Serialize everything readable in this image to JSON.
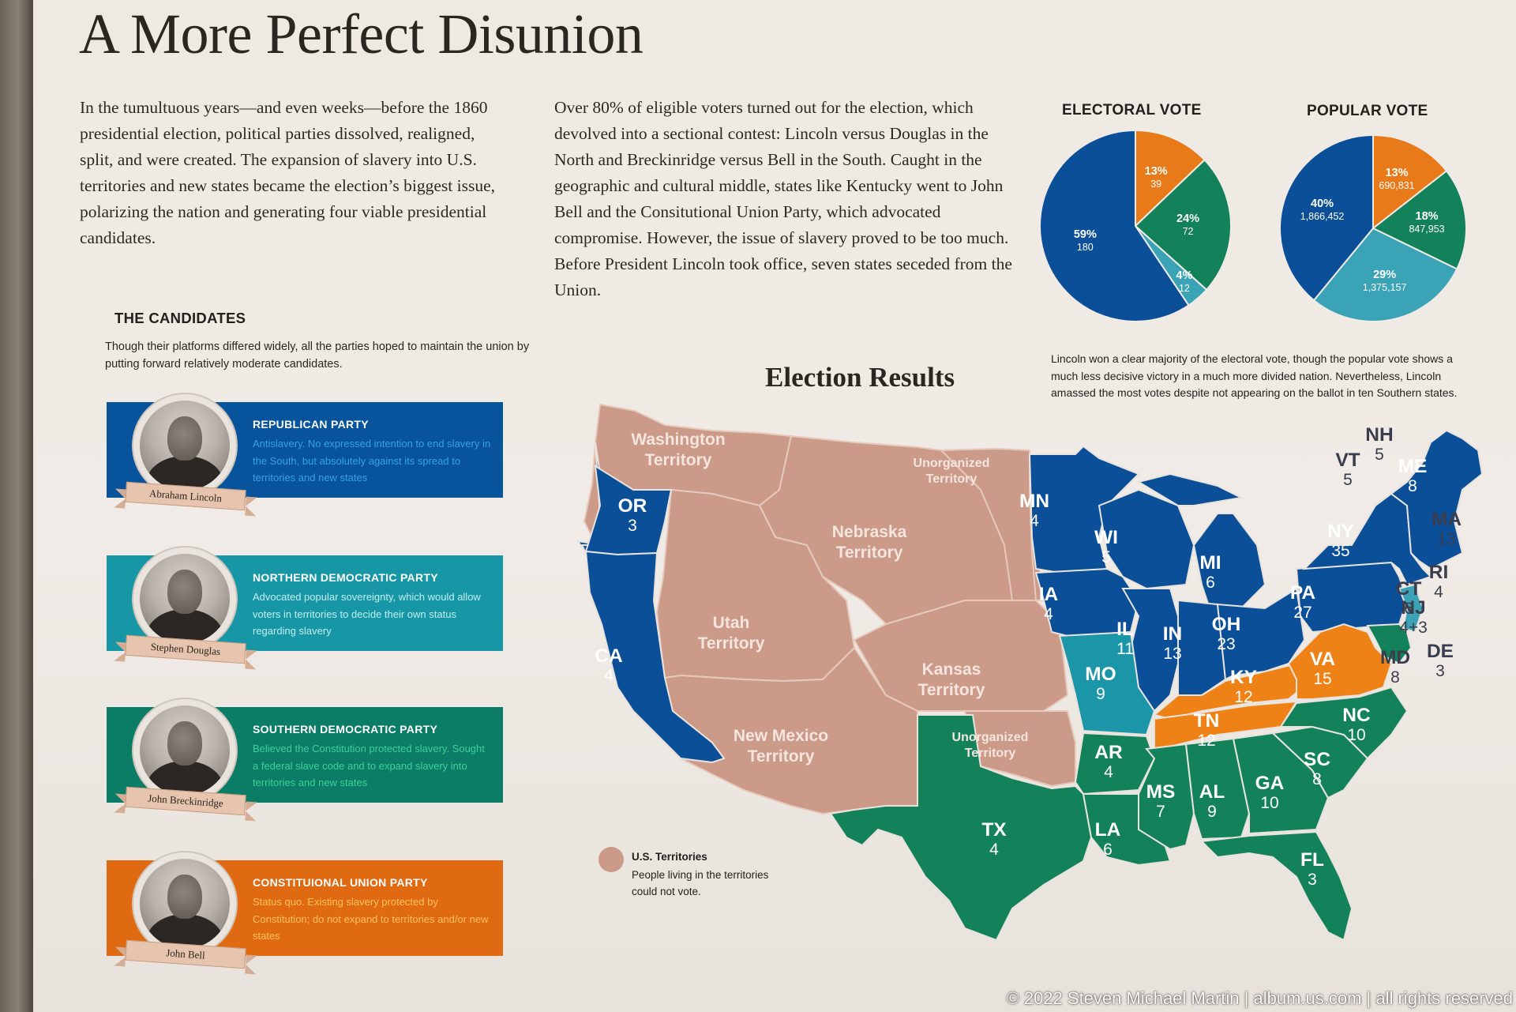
{
  "title": "A More Perfect Disunion",
  "intro_left": "In the tumultuous years—and even weeks—before the 1860 presidential election, political parties dissolved, realigned, split, and were created. The expansion of slavery into U.S. territories and new states became the election’s biggest issue, polarizing the nation and generating four viable presidential candidates.",
  "intro_middle": "Over 80% of eligible voters turned out for the election, which devolved into a sectional contest: Lincoln versus Douglas in the North and Breckinridge versus Bell in the South. Caught in the geographic and cultural middle, states like Kentucky went to John Bell and the Consitutional Union Party, which advocated compromise. However, the issue of slavery proved to be too much. Before President Lincoln took office, seven states seceded from the Union.",
  "candidates": {
    "heading": "THE CANDIDATES",
    "subtitle": "Though their platforms differed widely, all the parties hoped to maintain the union by putting forward relatively moderate candidates.",
    "list": [
      {
        "name": "Abraham Lincoln",
        "party": "REPUBLICAN PARTY",
        "description": "Antislavery. No expressed intention to end slavery in the South, but absolutely against its spread to territories and new states",
        "color": "#07539c",
        "text_color": "#37a3df"
      },
      {
        "name": "Stephen Douglas",
        "party": "NORTHERN DEMOCRATIC PARTY",
        "description": "Advocated popular sovereignty, which would allow voters in territories to decide their own status regarding slavery",
        "color": "#1797a6",
        "text_color": "#c2eef0"
      },
      {
        "name": "John Breckinridge",
        "party": "SOUTHERN DEMOCRATIC PARTY",
        "description": "Believed the Constitution protected slavery. Sought a federal slave code and to expand slavery into territories and new states",
        "color": "#0b7c65",
        "text_color": "#3fcf9b"
      },
      {
        "name": "John Bell",
        "party": "CONSTITUIONAL UNION PARTY",
        "description": "Status quo. Existing slavery protected by Constitution; do not expand to territories and/or new states",
        "color": "#e06a12",
        "text_color": "#ffc25a"
      }
    ]
  },
  "electoral_vote": {
    "heading": "ELECTORAL VOTE",
    "slices": [
      {
        "candidate": "Bell",
        "pct": "13%",
        "count": "39",
        "value": 39,
        "color": "#e97a1a"
      },
      {
        "candidate": "Breckinridge",
        "pct": "24%",
        "count": "72",
        "value": 72,
        "color": "#13825a"
      },
      {
        "candidate": "Douglas",
        "pct": "4%",
        "count": "12",
        "value": 12,
        "color": "#3aa3b5"
      },
      {
        "candidate": "Lincoln",
        "pct": "59%",
        "count": "180",
        "value": 180,
        "color": "#0a4f98"
      }
    ]
  },
  "popular_vote": {
    "heading": "POPULAR VOTE",
    "slices": [
      {
        "candidate": "Bell",
        "pct": "13%",
        "count": "690,831",
        "value": 690831,
        "color": "#e97a1a"
      },
      {
        "candidate": "Breckinridge",
        "pct": "18%",
        "count": "847,953",
        "value": 847953,
        "color": "#13825a"
      },
      {
        "candidate": "Douglas",
        "pct": "29%",
        "count": "1,375,157",
        "value": 1375157,
        "color": "#3aa3b5"
      },
      {
        "candidate": "Lincoln",
        "pct": "40%",
        "count": "1,866,452",
        "value": 1866452,
        "color": "#0a4f98"
      }
    ]
  },
  "vote_note": "Lincoln won a clear majority of the electoral vote, though the popular vote shows a much less decisive victory in a much more divided nation. Nevertheless, Lincoln amassed the most votes despite not appearing on the ballot in ten Southern states.",
  "map": {
    "title": "Election Results",
    "territories": [
      {
        "label": "Washington Territory",
        "line1": "Washington",
        "line2": "Territory"
      },
      {
        "label": "Nebraska Territory",
        "line1": "Nebraska",
        "line2": "Territory"
      },
      {
        "label": "Unorganized Territory",
        "line1": "Unorganized",
        "line2": "Territory"
      },
      {
        "label": "Utah Territory",
        "line1": "Utah",
        "line2": "Territory"
      },
      {
        "label": "Kansas Territory",
        "line1": "Kansas",
        "line2": "Territory"
      },
      {
        "label": "New Mexico Territory",
        "line1": "New Mexico",
        "line2": "Territory"
      },
      {
        "label": "Unorganized Territory",
        "line1": "Unorganized",
        "line2": "Territory"
      }
    ],
    "states": [
      {
        "abbr": "OR",
        "ev": "3",
        "winner": "Lincoln"
      },
      {
        "abbr": "CA",
        "ev": "4",
        "winner": "Lincoln"
      },
      {
        "abbr": "MN",
        "ev": "4",
        "winner": "Lincoln"
      },
      {
        "abbr": "WI",
        "ev": "5",
        "winner": "Lincoln"
      },
      {
        "abbr": "MI",
        "ev": "6",
        "winner": "Lincoln"
      },
      {
        "abbr": "IA",
        "ev": "4",
        "winner": "Lincoln"
      },
      {
        "abbr": "IL",
        "ev": "11",
        "winner": "Lincoln"
      },
      {
        "abbr": "IN",
        "ev": "13",
        "winner": "Lincoln"
      },
      {
        "abbr": "OH",
        "ev": "23",
        "winner": "Lincoln"
      },
      {
        "abbr": "PA",
        "ev": "27",
        "winner": "Lincoln"
      },
      {
        "abbr": "NY",
        "ev": "35",
        "winner": "Lincoln"
      },
      {
        "abbr": "VT",
        "ev": "5",
        "winner": "Lincoln"
      },
      {
        "abbr": "NH",
        "ev": "5",
        "winner": "Lincoln"
      },
      {
        "abbr": "ME",
        "ev": "8",
        "winner": "Lincoln"
      },
      {
        "abbr": "MA",
        "ev": "13",
        "winner": "Lincoln"
      },
      {
        "abbr": "RI",
        "ev": "4",
        "winner": "Lincoln"
      },
      {
        "abbr": "CT",
        "ev": "6",
        "winner": "Lincoln"
      },
      {
        "abbr": "NJ",
        "ev": "4+3",
        "winner": "Lincoln/Douglas"
      },
      {
        "abbr": "MO",
        "ev": "9",
        "winner": "Douglas"
      },
      {
        "abbr": "KY",
        "ev": "12",
        "winner": "Bell"
      },
      {
        "abbr": "VA",
        "ev": "15",
        "winner": "Bell"
      },
      {
        "abbr": "TN",
        "ev": "12",
        "winner": "Bell"
      },
      {
        "abbr": "MD",
        "ev": "8",
        "winner": "Breckinridge"
      },
      {
        "abbr": "DE",
        "ev": "3",
        "winner": "Breckinridge"
      },
      {
        "abbr": "NC",
        "ev": "10",
        "winner": "Breckinridge"
      },
      {
        "abbr": "SC",
        "ev": "8",
        "winner": "Breckinridge"
      },
      {
        "abbr": "GA",
        "ev": "10",
        "winner": "Breckinridge"
      },
      {
        "abbr": "AL",
        "ev": "9",
        "winner": "Breckinridge"
      },
      {
        "abbr": "MS",
        "ev": "7",
        "winner": "Breckinridge"
      },
      {
        "abbr": "AR",
        "ev": "4",
        "winner": "Breckinridge"
      },
      {
        "abbr": "LA",
        "ev": "6",
        "winner": "Breckinridge"
      },
      {
        "abbr": "TX",
        "ev": "4",
        "winner": "Breckinridge"
      },
      {
        "abbr": "FL",
        "ev": "3",
        "winner": "Breckinridge"
      }
    ],
    "legend": {
      "title": "U.S. Territories",
      "text": "People living in the territories could not vote.",
      "color": "#cc9a88"
    }
  },
  "copyright": "© 2022 Steven Michael Martin | album.us.com | all rights reserved"
}
